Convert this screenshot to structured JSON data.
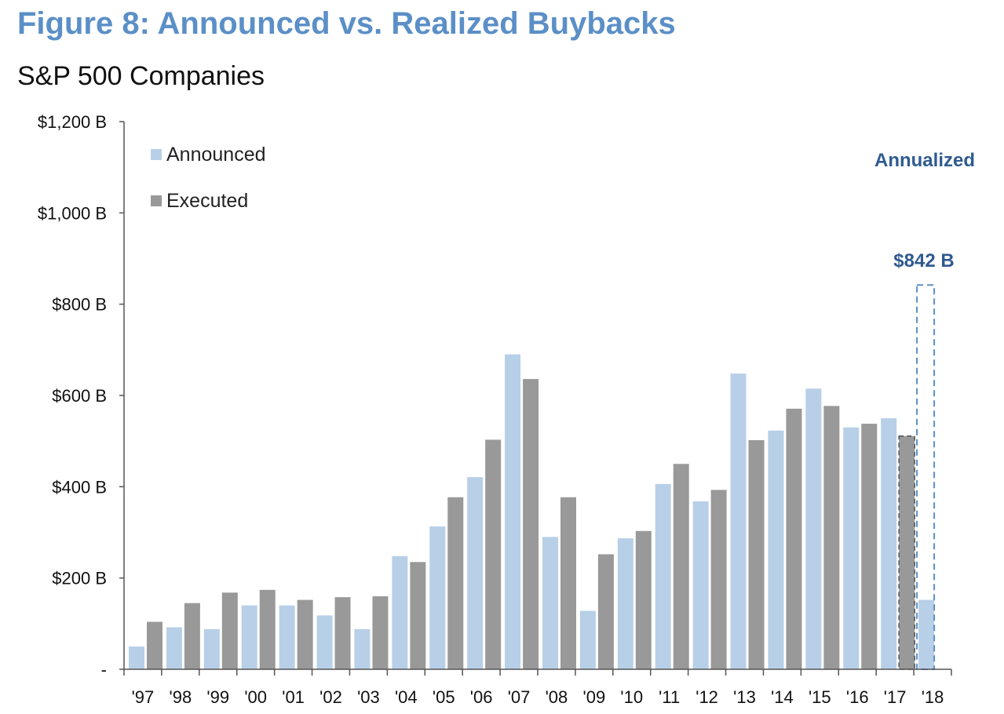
{
  "header": {
    "title": "Figure 8: Announced vs. Realized Buybacks",
    "subtitle": "S&P 500 Companies"
  },
  "chart_data": {
    "type": "bar",
    "title": "Figure 8: Announced vs. Realized Buybacks",
    "subtitle": "S&P 500 Companies",
    "xlabel": "",
    "ylabel": "",
    "ylim": [
      0,
      1200
    ],
    "yticks": [
      0,
      200,
      400,
      600,
      800,
      1000,
      1200
    ],
    "ytick_labels": [
      "-",
      "$200 B",
      "$400 B",
      "$600 B",
      "$800 B",
      "$1,000 B",
      "$1,200 B"
    ],
    "categories": [
      "'97",
      "'98",
      "'99",
      "'00",
      "'01",
      "'02",
      "'03",
      "'04",
      "'05",
      "'06",
      "'07",
      "'08",
      "'09",
      "'10",
      "'11",
      "'12",
      "'13",
      "'14",
      "'15",
      "'16",
      "'17",
      "'18"
    ],
    "series": [
      {
        "name": "Announced",
        "color": "#b8cfe8",
        "values": [
          50,
          92,
          88,
          140,
          140,
          118,
          88,
          248,
          313,
          421,
          690,
          290,
          128,
          287,
          406,
          368,
          648,
          523,
          615,
          530,
          550,
          152
        ]
      },
      {
        "name": "Executed",
        "color": "#999999",
        "values": [
          104,
          145,
          168,
          174,
          152,
          158,
          160,
          235,
          377,
          503,
          636,
          377,
          252,
          303,
          450,
          393,
          502,
          571,
          577,
          538,
          511,
          null
        ]
      }
    ],
    "annotations": {
      "annualized_label": "Annualized",
      "annualized_value_label": "$842 B",
      "annualized_value": 842
    },
    "legend": {
      "position": "top-left"
    },
    "grid": false
  }
}
